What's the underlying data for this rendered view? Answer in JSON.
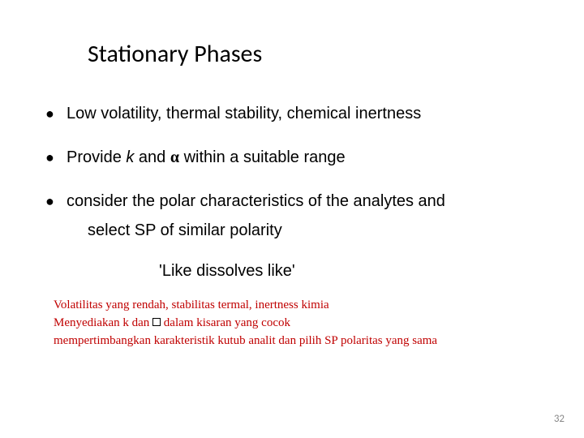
{
  "title": "Stationary Phases",
  "bullets": {
    "b1": "Low volatility, thermal stability, chemical inertness",
    "b2_pre": "Provide ",
    "b2_k": "k",
    "b2_mid": " and ",
    "b2_alpha": "α",
    "b2_post": " within a suitable range",
    "b3": "consider the polar characteristics of the analytes and",
    "b3_sub": "select SP of similar polarity"
  },
  "quote": "'Like dissolves like'",
  "translation": {
    "l1": "Volatilitas yang rendah, stabilitas termal, inertness kimia",
    "l2_pre": "Menyediakan k dan ",
    "l2_post": " dalam kisaran yang cocok",
    "l3": "mempertimbangkan karakteristik kutub analit dan pilih SP polaritas yang sama"
  },
  "pagenum": "32",
  "colors": {
    "text": "#000000",
    "translation": "#c00000",
    "background": "#ffffff",
    "pagenum": "#888888"
  },
  "fonts": {
    "title_size": 30,
    "body_size": 20,
    "translation_size": 15,
    "pagenum_size": 13
  }
}
